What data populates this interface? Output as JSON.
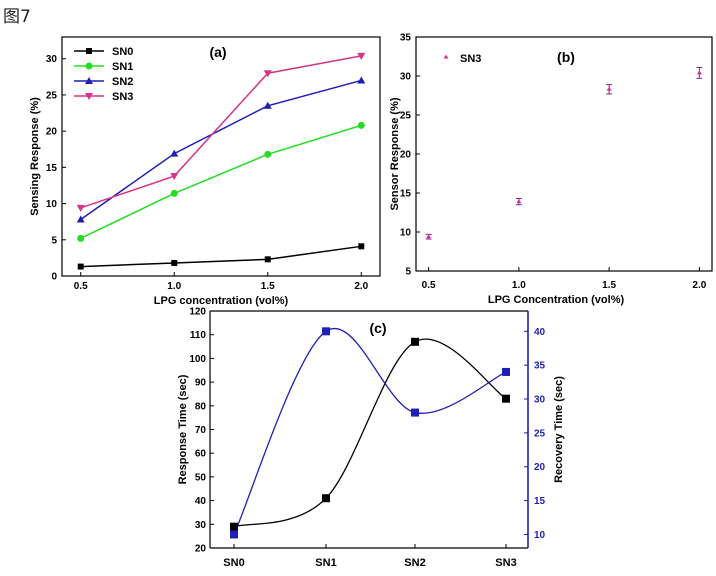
{
  "figure_label": "图7",
  "chart_data": [
    {
      "id": "a",
      "type": "line",
      "panel_label": "(a)",
      "xlabel": "LPG concentration (vol%)",
      "ylabel": "Sensing Response (%)",
      "x": [
        0.5,
        1.0,
        1.5,
        2.0
      ],
      "x_tick_labels": [
        "0.5",
        "1.0",
        "1.5",
        "2.0"
      ],
      "xlim": [
        0.4,
        2.1
      ],
      "ylim": [
        0,
        33
      ],
      "yticks": [
        0,
        5,
        10,
        15,
        20,
        25,
        30
      ],
      "legend_position": "top-left",
      "series": [
        {
          "name": "SN0",
          "values": [
            1.3,
            1.8,
            2.3,
            4.1
          ],
          "color": "#000000",
          "marker": "square"
        },
        {
          "name": "SN1",
          "values": [
            5.2,
            11.4,
            16.8,
            20.8
          ],
          "color": "#22dd22",
          "marker": "circle"
        },
        {
          "name": "SN2",
          "values": [
            7.8,
            16.9,
            23.5,
            27.0
          ],
          "color": "#1f1fb4",
          "marker": "triangle-up"
        },
        {
          "name": "SN3",
          "values": [
            9.4,
            13.8,
            28.0,
            30.4
          ],
          "color": "#d6338a",
          "marker": "triangle-down"
        }
      ]
    },
    {
      "id": "b",
      "type": "scatter",
      "panel_label": "(b)",
      "xlabel": "LPG Concentration (vol%)",
      "ylabel": "Sensor Response (%)",
      "x": [
        0.5,
        1.0,
        1.5,
        2.0
      ],
      "x_tick_labels": [
        "0.5",
        "1.0",
        "1.5",
        "2.0"
      ],
      "xlim": [
        0.43,
        2.07
      ],
      "ylim": [
        5,
        35
      ],
      "yticks": [
        5,
        10,
        15,
        20,
        25,
        30,
        35
      ],
      "legend_position": "top-left",
      "series": [
        {
          "name": "SN3",
          "values": [
            9.4,
            13.9,
            28.3,
            30.4
          ],
          "errors": [
            0.3,
            0.4,
            0.6,
            0.7
          ],
          "color": "#d6338a",
          "error_color": "#7a2a9a",
          "marker": "triangle-up"
        }
      ]
    },
    {
      "id": "c",
      "type": "line",
      "panel_label": "(c)",
      "categories": [
        "SN0",
        "SN1",
        "SN2",
        "SN3"
      ],
      "ylabel": "Response Time (sec)",
      "y2label": "Recovery Time (sec)",
      "ylim": [
        20,
        120
      ],
      "yticks": [
        20,
        30,
        40,
        50,
        60,
        70,
        80,
        90,
        100,
        110,
        120
      ],
      "y2lim": [
        8,
        43
      ],
      "y2ticks": [
        10,
        15,
        20,
        25,
        30,
        35,
        40
      ],
      "series": [
        {
          "name": "Response Time",
          "axis": "left",
          "values": [
            29,
            41,
            107,
            83
          ],
          "color": "#000000",
          "marker": "square"
        },
        {
          "name": "Recovery Time",
          "axis": "right",
          "values": [
            10,
            40,
            28,
            34
          ],
          "color": "#1f1fb4",
          "marker": "square"
        }
      ]
    }
  ]
}
